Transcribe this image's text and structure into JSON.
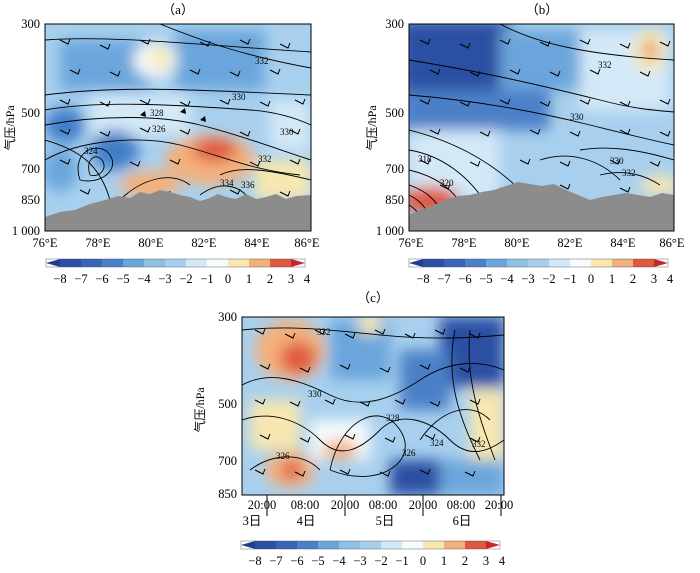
{
  "figure": {
    "panels": [
      {
        "id": "a",
        "label": "（a）",
        "y_axis_label": "气压/hPa",
        "y_ticks": [
          "300",
          "500",
          "700",
          "850",
          "1 000"
        ],
        "x_ticks": [
          "76°E",
          "78°E",
          "80°E",
          "82°E",
          "84°E",
          "86°E"
        ],
        "contour_labels": [
          "332",
          "330",
          "328",
          "326",
          "324",
          "332",
          "330",
          "334",
          "336"
        ],
        "colorbar_ticks": [
          "−8",
          "−7",
          "−6",
          "−5",
          "−4",
          "−3",
          "−2",
          "−1",
          "0",
          "1",
          "2",
          "3",
          "4"
        ]
      },
      {
        "id": "b",
        "label": "（b）",
        "y_axis_label": "气压/hPa",
        "y_ticks": [
          "300",
          "500",
          "700",
          "850",
          "1 000"
        ],
        "x_ticks": [
          "76°E",
          "78°E",
          "80°E",
          "82°E",
          "84°E",
          "86°E"
        ],
        "contour_labels": [
          "332",
          "330",
          "318",
          "320",
          "330",
          "332"
        ],
        "colorbar_ticks": [
          "−8",
          "−7",
          "−6",
          "−5",
          "−4",
          "−3",
          "−2",
          "−1",
          "0",
          "1",
          "2",
          "3",
          "4"
        ]
      },
      {
        "id": "c",
        "label": "（c）",
        "y_axis_label": "气压/hPa",
        "y_ticks": [
          "300",
          "500",
          "700",
          "850"
        ],
        "x_time_ticks": [
          "20:00",
          "08:00",
          "20:00",
          "08:00",
          "20:00",
          "08:00",
          "20:00"
        ],
        "x_day_labels": [
          "3日",
          "4日",
          "5日",
          "6日"
        ],
        "contour_labels": [
          "332",
          "330",
          "328",
          "324",
          "326",
          "332",
          "326"
        ],
        "colorbar_ticks": [
          "−8",
          "−7",
          "−6",
          "−5",
          "−4",
          "−3",
          "−2",
          "−1",
          "0",
          "1",
          "2",
          "3",
          "4"
        ]
      }
    ],
    "colors": {
      "deep_blue": "#2b4fa3",
      "blue": "#3f7fc9",
      "mid_blue": "#6aa6dc",
      "light_blue": "#a8d0ee",
      "pale_blue": "#d4e9f7",
      "white": "#f6fbfd",
      "pale_yellow": "#f8e7b0",
      "orange": "#f4b07a",
      "red": "#e0583f",
      "dark_red": "#c7252b",
      "terrain": "#8c8c8c"
    }
  }
}
